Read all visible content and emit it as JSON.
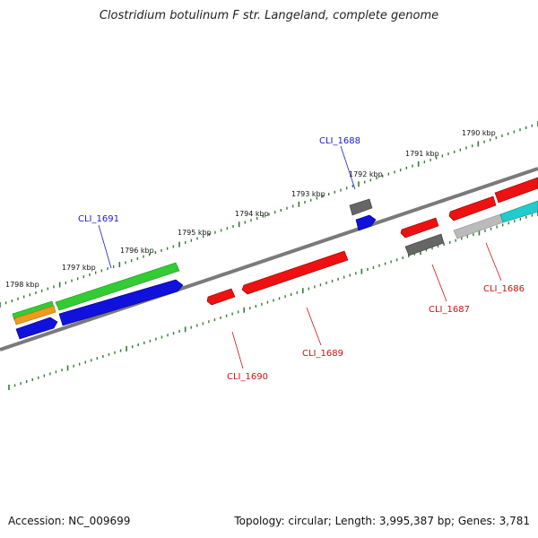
{
  "title": "Clostridium botulinum F str. Langeland, complete genome",
  "footer": {
    "accession": "Accession: NC_009699",
    "topology": "Topology: circular; Length: 3,995,387 bp; Genes: 3,781"
  },
  "colors": {
    "backbone": "#7a7a7a",
    "tick": "#2e7d32",
    "blue_label": "#1a1acc",
    "red_label": "#cc1111",
    "gene_red": "#ee1111",
    "gene_blue": "#1111dd",
    "gene_green": "#33cc33",
    "gene_orange": "#f29a1a",
    "gene_gray": "#666666",
    "gene_lightgray": "#bbbbbb",
    "gene_cyan": "#22cccc"
  },
  "scale_labels": [
    "1798 kbp",
    "1797 kbp",
    "1796 kbp",
    "1795 kbp",
    "1794 kbp",
    "1793 kbp",
    "1792 kbp",
    "1791 kbp",
    "1790 kbp"
  ],
  "gene_labels": [
    "CLI_1691",
    "CLI_1688",
    "CLI_1690",
    "CLI_1689",
    "CLI_1687",
    "CLI_1686"
  ]
}
